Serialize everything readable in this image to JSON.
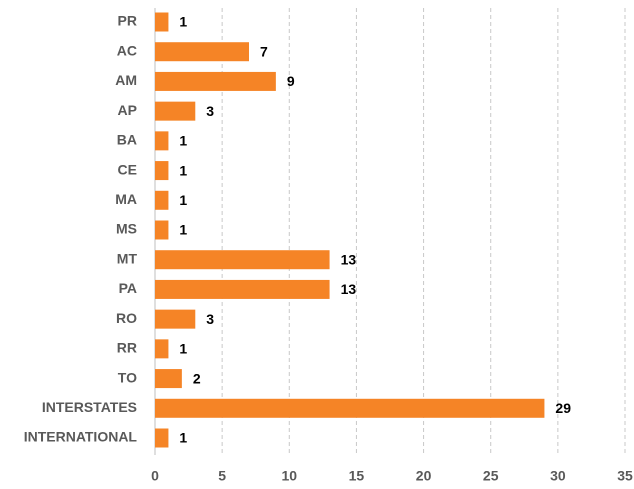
{
  "chart_data": {
    "type": "hbar",
    "categories": [
      "PR",
      "AC",
      "AM",
      "AP",
      "BA",
      "CE",
      "MA",
      "MS",
      "MT",
      "PA",
      "RO",
      "RR",
      "TO",
      "INTERSTATES",
      "INTERNATIONAL"
    ],
    "values": [
      1,
      7,
      9,
      3,
      1,
      1,
      1,
      1,
      13,
      13,
      3,
      1,
      2,
      29,
      1
    ],
    "color": "#f58426",
    "xlim": [
      0,
      35
    ],
    "xticks": [
      0,
      5,
      10,
      15,
      20,
      25,
      30,
      35
    ],
    "grid": true
  }
}
